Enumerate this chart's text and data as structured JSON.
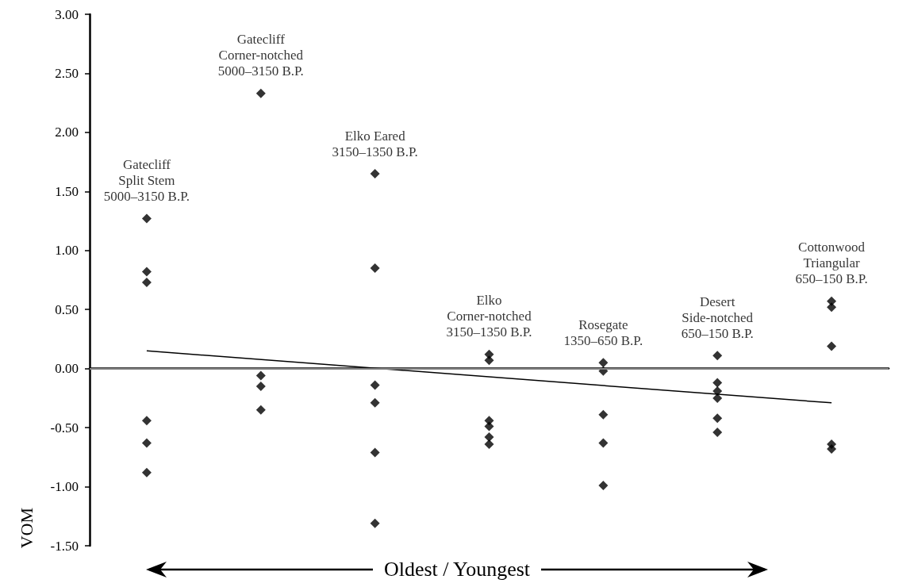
{
  "chart_data": {
    "type": "scatter",
    "xlabel": "Oldest / Youngest",
    "ylabel": "VOM",
    "categories": [
      "Gatecliff\nSplit Stem\n5000–3150 B.P.",
      "Gatecliff\nCorner-notched\n5000–3150 B.P.",
      "Elko Eared\n3150–1350 B.P.",
      "Elko\nCorner-notched\n3150–1350 B.P.",
      "Rosegate\n1350–650 B.P.",
      "Desert\nSide-notched\n650–150 B.P.",
      "Cottonwood\nTriangular\n650–150 B.P."
    ],
    "ylim": [
      -1.5,
      3
    ],
    "yticks": [
      {
        "value": -1.5,
        "label": "-1.50"
      },
      {
        "value": -1,
        "label": "-1.00"
      },
      {
        "value": -0.5,
        "label": "-0.50"
      },
      {
        "value": 0,
        "label": "0.00"
      },
      {
        "value": 0.5,
        "label": "0.50"
      },
      {
        "value": 1,
        "label": "1.00"
      },
      {
        "value": 1.5,
        "label": "1.50"
      },
      {
        "value": 2,
        "label": "2.00"
      },
      {
        "value": 2.5,
        "label": "2.50"
      },
      {
        "value": 3,
        "label": "3.00"
      }
    ],
    "marker": "diamond",
    "grid": false,
    "ref_lines": [
      {
        "axis": "y",
        "value": 0,
        "color": "#808080"
      }
    ],
    "series": [
      {
        "color": "#000000",
        "x": [
          "Gatecliff\nSplit Stem\n5000–3150 B.P.",
          "Gatecliff\nSplit Stem\n5000–3150 B.P.",
          "Gatecliff\nSplit Stem\n5000–3150 B.P.",
          "Gatecliff\nSplit Stem\n5000–3150 B.P.",
          "Gatecliff\nSplit Stem\n5000–3150 B.P.",
          "Gatecliff\nSplit Stem\n5000–3150 B.P.",
          "Gatecliff\nCorner-notched\n5000–3150 B.P.",
          "Gatecliff\nCorner-notched\n5000–3150 B.P.",
          "Gatecliff\nCorner-notched\n5000–3150 B.P.",
          "Gatecliff\nCorner-notched\n5000–3150 B.P.",
          "Elko Eared\n3150–1350 B.P.",
          "Elko Eared\n3150–1350 B.P.",
          "Elko Eared\n3150–1350 B.P.",
          "Elko Eared\n3150–1350 B.P.",
          "Elko Eared\n3150–1350 B.P.",
          "Elko Eared\n3150–1350 B.P.",
          "Elko\nCorner-notched\n3150–1350 B.P.",
          "Elko\nCorner-notched\n3150–1350 B.P.",
          "Elko\nCorner-notched\n3150–1350 B.P.",
          "Elko\nCorner-notched\n3150–1350 B.P.",
          "Elko\nCorner-notched\n3150–1350 B.P.",
          "Elko\nCorner-notched\n3150–1350 B.P.",
          "Rosegate\n1350–650 B.P.",
          "Rosegate\n1350–650 B.P.",
          "Rosegate\n1350–650 B.P.",
          "Rosegate\n1350–650 B.P.",
          "Rosegate\n1350–650 B.P.",
          "Desert\nSide-notched\n650–150 B.P.",
          "Desert\nSide-notched\n650–150 B.P.",
          "Desert\nSide-notched\n650–150 B.P.",
          "Desert\nSide-notched\n650–150 B.P.",
          "Desert\nSide-notched\n650–150 B.P.",
          "Desert\nSide-notched\n650–150 B.P.",
          "Cottonwood\nTriangular\n650–150 B.P.",
          "Cottonwood\nTriangular\n650–150 B.P.",
          "Cottonwood\nTriangular\n650–150 B.P.",
          "Cottonwood\nTriangular\n650–150 B.P.",
          "Cottonwood\nTriangular\n650–150 B.P."
        ],
        "values": [
          1.27,
          0.82,
          0.73,
          -0.44,
          -0.63,
          -0.88,
          2.33,
          -0.06,
          -0.15,
          -0.35,
          1.65,
          0.85,
          -0.14,
          -0.29,
          -0.71,
          -1.31,
          0.12,
          0.07,
          -0.44,
          -0.49,
          -0.58,
          -0.64,
          0.05,
          -0.02,
          -0.39,
          -0.63,
          -0.99,
          0.11,
          -0.12,
          -0.19,
          -0.25,
          -0.42,
          -0.54,
          0.57,
          0.52,
          0.19,
          -0.64,
          -0.68
        ]
      },
      {
        "type": "line",
        "color": "#000000",
        "line_style": "solid",
        "marker": "none",
        "values": [
          0.15,
          null,
          null,
          null,
          null,
          null,
          -0.29
        ]
      }
    ]
  }
}
